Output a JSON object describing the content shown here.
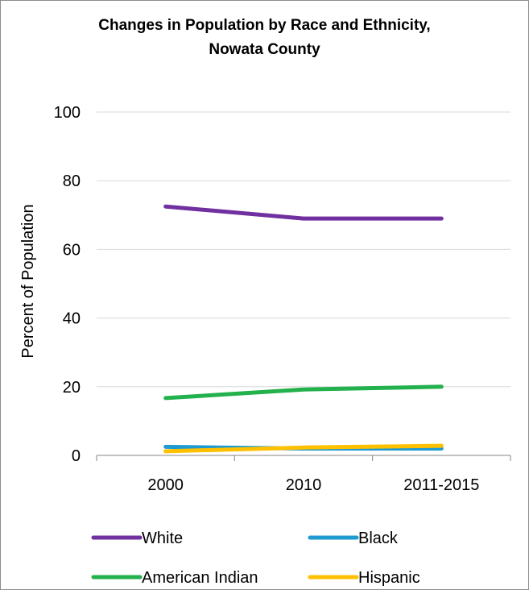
{
  "chart_data": {
    "type": "line",
    "title_lines": [
      "Changes in Population by Race and Ethnicity,",
      "Nowata County"
    ],
    "ylabel": "Percent of Population",
    "xlabel": "",
    "ylim": [
      0,
      100
    ],
    "yticks": [
      "0",
      "20",
      "40",
      "60",
      "80",
      "100"
    ],
    "categories": [
      "2000",
      "2010",
      "2011-2015"
    ],
    "grid": true,
    "legend_position": "bottom",
    "series": [
      {
        "name": "White",
        "color": "#7030a0",
        "values": [
          72.5,
          69,
          69
        ]
      },
      {
        "name": "Black",
        "color": "#1f9bd1",
        "values": [
          2.5,
          2,
          2
        ]
      },
      {
        "name": "American Indian",
        "color": "#22b14c",
        "values": [
          16.7,
          19.2,
          20
        ]
      },
      {
        "name": "Hispanic",
        "color": "#ffc000",
        "values": [
          1.2,
          2.3,
          2.8
        ]
      }
    ]
  }
}
